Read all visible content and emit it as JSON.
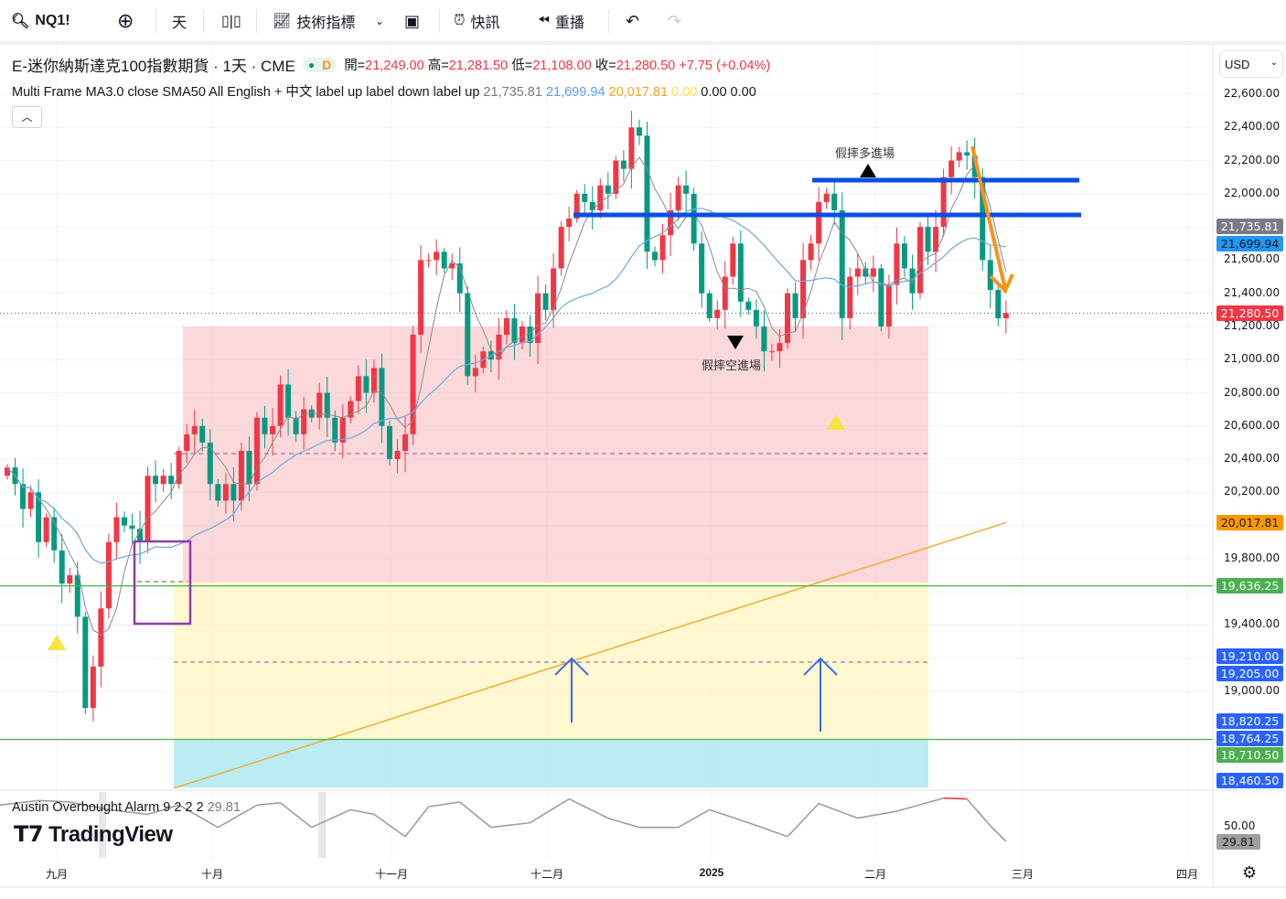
{
  "toolbar": {
    "symbol": "NQ1!",
    "interval": "天",
    "indicators": "技術指標",
    "alert": "快訊",
    "replay": "重播"
  },
  "legend": {
    "title": "E-迷你納斯達克100指數期貨 · 1天 · CME",
    "badge": "D",
    "open_label": "開=",
    "open": "21,249.00",
    "high_label": "高=",
    "high": "21,281.50",
    "low_label": "低=",
    "low": "21,108.00",
    "close_label": "收=",
    "close": "21,280.50",
    "change": "+7.75 (+0.04%)",
    "indicator_name": "Multi Frame MA3.0 close SMA50 All English + 中文 label up label down label up",
    "ind_values": [
      "21,735.81",
      "21,699.94",
      "20,017.81",
      "0.00",
      "0.00",
      "0.00"
    ],
    "ind_colors": [
      "#787b86",
      "#5b9cf6",
      "#f7a21b",
      "#f5e642",
      "#131722",
      "#131722"
    ]
  },
  "currency": "USD",
  "annotations": {
    "fake_short": "假摔空進場",
    "fake_long": "假摔多進場"
  },
  "price_ticks": [
    "22,600.00",
    "22,400.00",
    "22,200.00",
    "22,000.00",
    "21,600.00",
    "21,400.00",
    "21,200.00",
    "21,000.00",
    "20,800.00",
    "20,600.00",
    "20,400.00",
    "20,200.00",
    "19,800.00",
    "19,400.00",
    "19,000.00"
  ],
  "badges": [
    {
      "text": "21,735.81",
      "color": "#787b86"
    },
    {
      "text": "21,699.94",
      "color": "#2196f3",
      "fg": "#131722"
    },
    {
      "text": "21,280.50",
      "color": "#F23645"
    },
    {
      "text": "20,017.81",
      "color": "#ff9800",
      "fg": "#131722"
    },
    {
      "text": "19,636.25",
      "color": "#4caf50"
    },
    {
      "text": "19,210.00",
      "color": "#2962ff"
    },
    {
      "text": "19,205.00",
      "color": "#2962ff"
    },
    {
      "text": "18,820.25",
      "color": "#2962ff"
    },
    {
      "text": "18,764.25",
      "color": "#2962ff"
    },
    {
      "text": "18,710.50",
      "color": "#4caf50"
    },
    {
      "text": "18,460.50",
      "color": "#2962ff"
    }
  ],
  "x_labels": [
    "九月",
    "十月",
    "十一月",
    "十二月",
    "2025",
    "二月",
    "三月",
    "四月"
  ],
  "indicator": {
    "label": "Austin Overbought Alarm 9 2 2 2",
    "value": "29.81",
    "tick": "50.00"
  },
  "logo": "TradingView",
  "chart_data": {
    "type": "candlestick",
    "symbol": "NQ1!",
    "ylim": [
      18400,
      22700
    ],
    "colors": {
      "up": "#F23645",
      "down": "#089981"
    },
    "closes": [
      20350,
      20250,
      20100,
      20200,
      19900,
      20050,
      19850,
      19650,
      19700,
      19450,
      18900,
      19150,
      19500,
      19900,
      20050,
      20000,
      19980,
      19900,
      20300,
      20250,
      20300,
      20250,
      20450,
      20550,
      20600,
      20500,
      20250,
      20150,
      20250,
      20150,
      20450,
      20250,
      20650,
      20550,
      20600,
      20850,
      20650,
      20550,
      20700,
      20650,
      20800,
      20650,
      20500,
      20650,
      20750,
      20900,
      20800,
      20950,
      20600,
      20400,
      20450,
      20550,
      21150,
      21600,
      21600,
      21650,
      21550,
      21580,
      21400,
      20900,
      20950,
      21050,
      21000,
      21150,
      21250,
      21100,
      21200,
      21100,
      21400,
      21300,
      21550,
      21800,
      21850,
      22000,
      21950,
      21900,
      22050,
      22000,
      22200,
      22150,
      22400,
      22350,
      21650,
      21600,
      21750,
      21900,
      22050,
      22000,
      21700,
      21400,
      21250,
      21300,
      21500,
      21700,
      21350,
      21300,
      21200,
      21050,
      21050,
      21100,
      21400,
      21250,
      21600,
      21700,
      21950,
      22000,
      21900,
      21250,
      21500,
      21550,
      21500,
      21550,
      21200,
      21450,
      21700,
      21550,
      21400,
      21800,
      21650,
      21800,
      22100,
      22200,
      22250,
      22230,
      22100,
      21600,
      21420,
      21249,
      21280.5
    ],
    "first_open": 20300,
    "long_ma": {
      "start": 18416,
      "end": 20017.81
    },
    "levels": {
      "last": 21280.5,
      "green_upper": 19636.25,
      "green_lower": 18710.5,
      "blue_upper": 22082,
      "blue_lower": 21872
    },
    "zones": [
      {
        "name": "pink",
        "top": 21200,
        "bottom": 19657
      },
      {
        "name": "yellow",
        "top": 19657,
        "bottom": 18713
      },
      {
        "name": "cyan",
        "top": 18713,
        "bottom": 18420
      }
    ],
    "oscillator": [
      [
        -1,
        77
      ],
      [
        4,
        83
      ],
      [
        8,
        81
      ],
      [
        13,
        71
      ],
      [
        18,
        65
      ],
      [
        22,
        77
      ],
      [
        27,
        48
      ],
      [
        32,
        77
      ],
      [
        35,
        80
      ],
      [
        39,
        48
      ],
      [
        44,
        71
      ],
      [
        47,
        65
      ],
      [
        51,
        36
      ],
      [
        54,
        75
      ],
      [
        58,
        81
      ],
      [
        62,
        48
      ],
      [
        67,
        54
      ],
      [
        72,
        85
      ],
      [
        77,
        60
      ],
      [
        81,
        48
      ],
      [
        86,
        48
      ],
      [
        90,
        71
      ],
      [
        95,
        54
      ],
      [
        100,
        36
      ],
      [
        104,
        79
      ],
      [
        109,
        60
      ],
      [
        114,
        69
      ],
      [
        120,
        86
      ],
      [
        123,
        85
      ],
      [
        126,
        50
      ],
      [
        128,
        29.81
      ]
    ]
  }
}
